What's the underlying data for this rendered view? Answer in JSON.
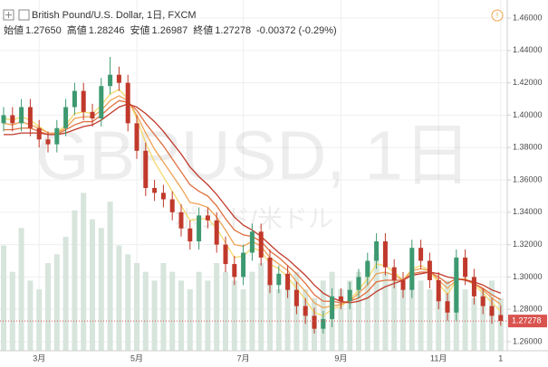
{
  "chart_data": {
    "type": "candlestick",
    "title": "British Pound/U.S. Dollar, 1日, FXCM",
    "ohlc_legend": [
      {
        "label": "始値",
        "value": "1.27650"
      },
      {
        "label": "高値",
        "value": "1.28246"
      },
      {
        "label": "安値",
        "value": "1.26987"
      },
      {
        "label": "終値",
        "value": "1.27278"
      }
    ],
    "change": "-0.00372 (-0.29%)",
    "watermark": "GBPUSD, 1日",
    "watermark_subtitle": "ポンド/米ドル",
    "categories": [
      null,
      null,
      null,
      null,
      "3月",
      null,
      null,
      null,
      null,
      null,
      null,
      null,
      null,
      null,
      null,
      "5月",
      null,
      null,
      null,
      null,
      null,
      null,
      null,
      null,
      null,
      null,
      null,
      "7月",
      null,
      null,
      null,
      null,
      null,
      null,
      null,
      null,
      null,
      null,
      "9月",
      null,
      null,
      null,
      null,
      null,
      null,
      null,
      null,
      null,
      null,
      "11月",
      null,
      null,
      null,
      null,
      null,
      null,
      "1"
    ],
    "candles": {
      "open": [
        1.395,
        1.4,
        1.395,
        1.405,
        1.392,
        1.385,
        1.382,
        1.392,
        1.405,
        1.415,
        1.402,
        1.398,
        1.418,
        1.425,
        1.42,
        1.395,
        1.378,
        1.355,
        1.352,
        1.348,
        1.34,
        1.33,
        1.322,
        1.338,
        1.335,
        1.32,
        1.308,
        1.3,
        1.315,
        1.328,
        1.312,
        1.295,
        1.302,
        1.292,
        1.282,
        1.276,
        1.268,
        1.274,
        1.288,
        1.285,
        1.292,
        1.3,
        1.31,
        1.322,
        1.306,
        1.298,
        1.292,
        1.318,
        1.31,
        1.298,
        1.285,
        1.278,
        1.312,
        1.3,
        1.288,
        1.282,
        1.2765
      ],
      "high": [
        1.405,
        1.405,
        1.41,
        1.41,
        1.397,
        1.39,
        1.397,
        1.41,
        1.42,
        1.42,
        1.407,
        1.423,
        1.436,
        1.43,
        1.425,
        1.4,
        1.383,
        1.36,
        1.357,
        1.353,
        1.345,
        1.335,
        1.343,
        1.343,
        1.34,
        1.325,
        1.313,
        1.32,
        1.333,
        1.333,
        1.317,
        1.307,
        1.307,
        1.297,
        1.287,
        1.281,
        1.279,
        1.293,
        1.293,
        1.297,
        1.305,
        1.315,
        1.327,
        1.327,
        1.311,
        1.303,
        1.323,
        1.323,
        1.315,
        1.303,
        1.29,
        1.317,
        1.317,
        1.305,
        1.293,
        1.287,
        1.28246
      ],
      "low": [
        1.39,
        1.39,
        1.39,
        1.387,
        1.38,
        1.377,
        1.377,
        1.387,
        1.4,
        1.397,
        1.393,
        1.393,
        1.413,
        1.415,
        1.39,
        1.373,
        1.35,
        1.347,
        1.343,
        1.335,
        1.325,
        1.317,
        1.317,
        1.33,
        1.315,
        1.303,
        1.295,
        1.295,
        1.31,
        1.307,
        1.29,
        1.29,
        1.287,
        1.277,
        1.271,
        1.265,
        1.265,
        1.269,
        1.28,
        1.28,
        1.287,
        1.295,
        1.305,
        1.301,
        1.293,
        1.287,
        1.287,
        1.305,
        1.293,
        1.28,
        1.273,
        1.273,
        1.295,
        1.283,
        1.277,
        1.271,
        1.26987
      ],
      "close": [
        1.4,
        1.395,
        1.405,
        1.392,
        1.385,
        1.382,
        1.392,
        1.405,
        1.415,
        1.402,
        1.398,
        1.418,
        1.425,
        1.42,
        1.395,
        1.378,
        1.355,
        1.352,
        1.348,
        1.34,
        1.33,
        1.322,
        1.338,
        1.335,
        1.32,
        1.308,
        1.3,
        1.315,
        1.328,
        1.312,
        1.295,
        1.302,
        1.292,
        1.282,
        1.276,
        1.268,
        1.274,
        1.288,
        1.285,
        1.292,
        1.3,
        1.31,
        1.322,
        1.306,
        1.298,
        1.292,
        1.318,
        1.31,
        1.298,
        1.285,
        1.278,
        1.312,
        1.3,
        1.288,
        1.282,
        1.276,
        1.27278
      ],
      "up_color": "#3d9970",
      "down_color": "#c0392b"
    },
    "series": [
      {
        "color": "#f4d96b",
        "values": [
          1.398,
          1.397,
          1.399,
          1.397,
          1.393,
          1.389,
          1.389,
          1.394,
          1.401,
          1.402,
          1.401,
          1.406,
          1.413,
          1.416,
          1.41,
          1.398,
          1.383,
          1.371,
          1.362,
          1.353,
          1.344,
          1.335,
          1.336,
          1.336,
          1.33,
          1.321,
          1.312,
          1.313,
          1.318,
          1.316,
          1.308,
          1.305,
          1.3,
          1.293,
          1.286,
          1.278,
          1.276,
          1.28,
          1.282,
          1.286,
          1.292,
          1.299,
          1.308,
          1.307,
          1.303,
          1.298,
          1.305,
          1.307,
          1.304,
          1.296,
          1.289,
          1.298,
          1.299,
          1.295,
          1.29,
          1.284,
          1.279
        ]
      },
      {
        "color": "#efa254",
        "values": [
          1.395,
          1.394,
          1.396,
          1.394,
          1.392,
          1.389,
          1.389,
          1.392,
          1.398,
          1.399,
          1.399,
          1.403,
          1.409,
          1.412,
          1.409,
          1.4,
          1.389,
          1.379,
          1.371,
          1.363,
          1.355,
          1.346,
          1.345,
          1.343,
          1.337,
          1.329,
          1.32,
          1.319,
          1.322,
          1.319,
          1.312,
          1.308,
          1.304,
          1.297,
          1.291,
          1.284,
          1.281,
          1.282,
          1.283,
          1.285,
          1.29,
          1.295,
          1.302,
          1.303,
          1.301,
          1.298,
          1.304,
          1.305,
          1.304,
          1.298,
          1.293,
          1.298,
          1.299,
          1.296,
          1.292,
          1.287,
          1.283
        ]
      },
      {
        "color": "#e0703f",
        "values": [
          1.391,
          1.391,
          1.392,
          1.392,
          1.39,
          1.388,
          1.388,
          1.391,
          1.394,
          1.396,
          1.396,
          1.4,
          1.405,
          1.409,
          1.408,
          1.403,
          1.395,
          1.388,
          1.381,
          1.373,
          1.365,
          1.357,
          1.353,
          1.35,
          1.344,
          1.336,
          1.329,
          1.326,
          1.325,
          1.322,
          1.316,
          1.312,
          1.307,
          1.302,
          1.296,
          1.289,
          1.285,
          1.285,
          1.284,
          1.285,
          1.287,
          1.291,
          1.297,
          1.298,
          1.298,
          1.298,
          1.302,
          1.303,
          1.303,
          1.3,
          1.296,
          1.299,
          1.298,
          1.296,
          1.293,
          1.289,
          1.286
        ]
      },
      {
        "color": "#c0392b",
        "values": [
          1.388,
          1.388,
          1.389,
          1.389,
          1.389,
          1.388,
          1.388,
          1.389,
          1.391,
          1.393,
          1.394,
          1.397,
          1.401,
          1.405,
          1.407,
          1.405,
          1.401,
          1.396,
          1.39,
          1.383,
          1.376,
          1.368,
          1.362,
          1.357,
          1.351,
          1.344,
          1.337,
          1.332,
          1.329,
          1.325,
          1.32,
          1.315,
          1.311,
          1.306,
          1.301,
          1.295,
          1.29,
          1.287,
          1.285,
          1.284,
          1.285,
          1.287,
          1.291,
          1.294,
          1.296,
          1.298,
          1.301,
          1.302,
          1.303,
          1.302,
          1.3,
          1.299,
          1.298,
          1.297,
          1.295,
          1.292,
          1.29
        ]
      }
    ],
    "volume": [
      60,
      45,
      70,
      40,
      35,
      50,
      55,
      65,
      80,
      90,
      75,
      70,
      85,
      60,
      55,
      50,
      45,
      40,
      50,
      45,
      40,
      35,
      45,
      40,
      50,
      45,
      40,
      35,
      45,
      50,
      40,
      35,
      40,
      45,
      35,
      30,
      40,
      45,
      35,
      40,
      45,
      50,
      55,
      45,
      40,
      35,
      45,
      40,
      35,
      30,
      40,
      45,
      35,
      30,
      35,
      40,
      30
    ],
    "volume_lim": [
      0,
      200
    ],
    "volume_color": "#d7e5dc",
    "last_price": {
      "value": 1.27278,
      "label": "1.27278"
    },
    "last_price_color": "#d9534f",
    "ylim": [
      1.2544,
      1.4712
    ],
    "yticks": [
      {
        "value": 1.26,
        "label": "1.26000"
      },
      {
        "value": 1.28,
        "label": "1.28000"
      },
      {
        "value": 1.3,
        "label": "1.30000"
      },
      {
        "value": 1.32,
        "label": "1.32000"
      },
      {
        "value": 1.34,
        "label": "1.34000"
      },
      {
        "value": 1.36,
        "label": "1.36000"
      },
      {
        "value": 1.38,
        "label": "1.38000"
      },
      {
        "value": 1.4,
        "label": "1.40000"
      },
      {
        "value": 1.42,
        "label": "1.42000"
      },
      {
        "value": 1.44,
        "label": "1.44000"
      },
      {
        "value": 1.46,
        "label": "1.46000"
      }
    ],
    "grid": true
  }
}
